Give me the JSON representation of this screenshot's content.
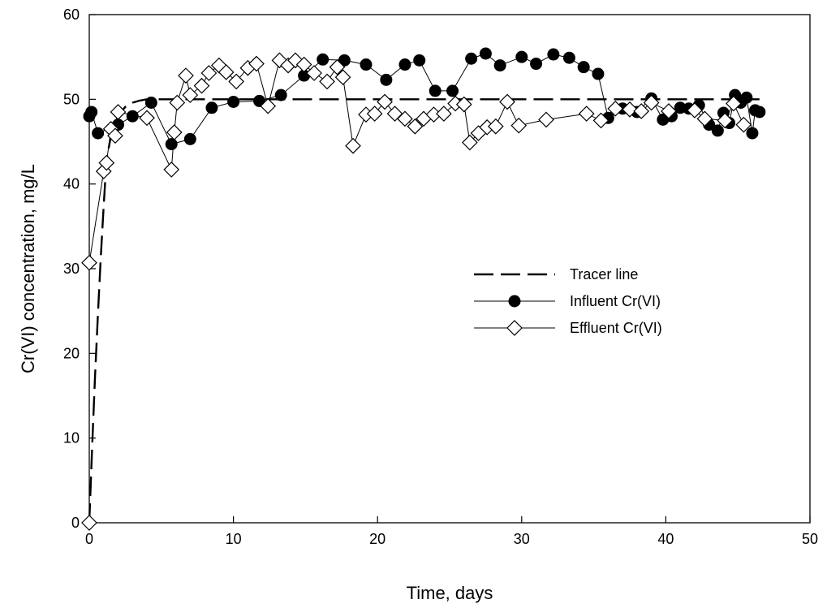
{
  "chart_data": {
    "type": "line",
    "title": "",
    "xlabel": "Time, days",
    "ylabel": "Cr(VI) concentration, mg/L",
    "xlim": [
      0,
      50
    ],
    "ylim": [
      0,
      60
    ],
    "xticks": [
      0,
      10,
      20,
      30,
      40,
      50
    ],
    "yticks": [
      0,
      10,
      20,
      30,
      40,
      50,
      60
    ],
    "grid": false,
    "legend_position": "right",
    "series": [
      {
        "name": "Tracer line",
        "style": "dashed",
        "color": "#000000",
        "marker": "none",
        "x": [
          0.0,
          0.2,
          0.4,
          0.6,
          0.8,
          1.0,
          1.2,
          1.5,
          1.8,
          2.1,
          2.5,
          3.0,
          3.5,
          4.0,
          46.5
        ],
        "y": [
          0.0,
          9.1,
          17.3,
          24.7,
          31.4,
          37.5,
          42.9,
          45.6,
          47.3,
          48.3,
          49.1,
          49.6,
          49.85,
          50.0,
          50.0
        ]
      },
      {
        "name": "Influent Cr(VI)",
        "style": "solid",
        "color": "#000000",
        "marker": "filled-circle",
        "x": [
          0.0,
          0.15,
          0.6,
          2.0,
          3.0,
          4.3,
          5.7,
          7.0,
          8.5,
          10.0,
          11.8,
          13.3,
          14.9,
          16.2,
          17.7,
          19.2,
          20.6,
          21.9,
          22.9,
          24.0,
          25.2,
          26.5,
          27.5,
          28.5,
          30.0,
          31.0,
          32.2,
          33.3,
          34.3,
          35.3,
          36.0,
          37.0,
          38.0,
          39.0,
          39.8,
          40.4,
          41.0,
          41.6,
          42.3,
          43.0,
          43.6,
          44.0,
          44.4,
          44.8,
          45.2,
          45.6,
          46.0,
          46.2,
          46.5
        ],
        "y": [
          48.0,
          48.5,
          46.0,
          47.0,
          48.0,
          49.6,
          44.7,
          45.3,
          49.0,
          49.7,
          49.8,
          50.5,
          52.8,
          54.7,
          54.6,
          54.1,
          52.3,
          54.1,
          54.6,
          51.0,
          51.0,
          54.8,
          55.4,
          54.0,
          55.0,
          54.2,
          55.3,
          54.9,
          53.8,
          53.0,
          47.8,
          48.9,
          48.5,
          50.1,
          47.6,
          48.0,
          49.0,
          48.9,
          49.3,
          47.0,
          46.3,
          48.4,
          47.2,
          50.5,
          49.6,
          50.2,
          46.0,
          48.7,
          48.5
        ]
      },
      {
        "name": "Effluent Cr(VI)",
        "style": "solid",
        "color": "#000000",
        "marker": "open-diamond",
        "x": [
          0.0,
          0.0,
          1.0,
          1.2,
          1.5,
          1.8,
          2.0,
          4.0,
          5.7,
          5.9,
          6.1,
          6.7,
          7.0,
          7.8,
          8.3,
          9.0,
          9.5,
          10.2,
          11.0,
          11.6,
          12.4,
          13.2,
          13.8,
          14.3,
          14.9,
          15.6,
          16.5,
          17.2,
          17.6,
          18.3,
          19.2,
          19.8,
          20.5,
          21.2,
          21.9,
          22.6,
          23.2,
          23.9,
          24.6,
          25.4,
          26.0,
          26.4,
          27.0,
          27.6,
          28.2,
          29.0,
          29.8,
          31.7,
          34.5,
          35.5,
          36.5,
          37.5,
          38.3,
          39.0,
          40.2,
          42.0,
          42.7,
          44.1,
          44.7,
          45.4
        ],
        "y": [
          0.0,
          30.7,
          41.5,
          42.5,
          46.5,
          45.7,
          48.5,
          47.8,
          41.7,
          46.1,
          49.6,
          52.8,
          50.5,
          51.6,
          53.1,
          54.0,
          53.2,
          52.1,
          53.7,
          54.2,
          49.2,
          54.6,
          54.0,
          54.6,
          54.1,
          53.1,
          52.1,
          53.8,
          52.6,
          44.5,
          48.2,
          48.3,
          49.7,
          48.3,
          47.7,
          46.8,
          47.7,
          48.2,
          48.3,
          49.5,
          49.4,
          44.9,
          46.0,
          46.7,
          46.8,
          49.7,
          46.9,
          47.6,
          48.3,
          47.5,
          48.9,
          48.8,
          48.6,
          49.6,
          48.6,
          48.7,
          47.7,
          47.5,
          49.5,
          47.0
        ]
      }
    ]
  }
}
